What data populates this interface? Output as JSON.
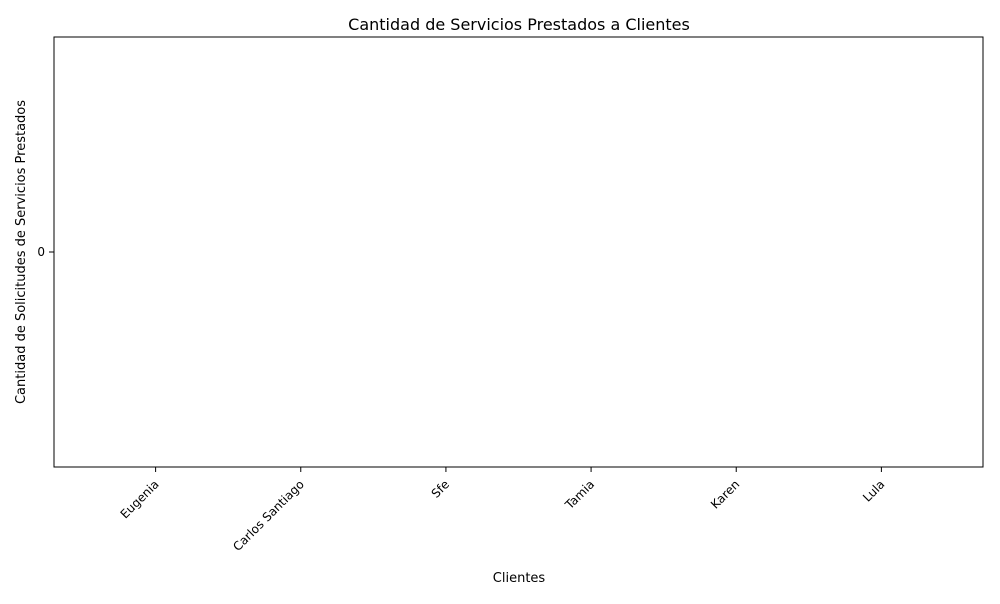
{
  "chart_data": {
    "type": "bar",
    "title": "Cantidad de Servicios Prestados a Clientes",
    "xlabel": "Clientes",
    "ylabel": "Cantidad de Solicitudes de Servicios Prestados",
    "categories": [
      "Eugenia",
      "Carlos Santiago",
      "Sfe",
      "Tamia",
      "Karen",
      "Lula"
    ],
    "values": [
      0,
      0,
      0,
      0,
      0,
      0
    ],
    "ylim": [
      -0.055,
      0.055
    ],
    "yticks": [
      0
    ],
    "grid": false,
    "legend": "none",
    "bar_color": "#1f77b4",
    "x_tick_rotation_deg": 45
  }
}
